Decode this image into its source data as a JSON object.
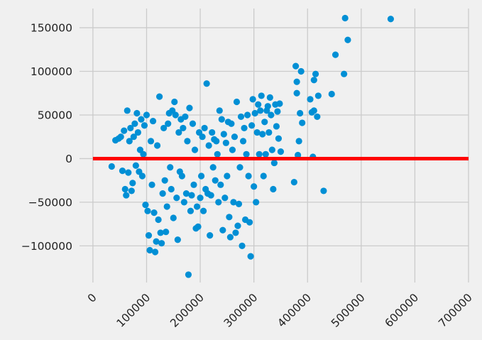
{
  "chart_data": {
    "type": "scatter",
    "title": "",
    "xlabel": "",
    "ylabel": "",
    "xlim": [
      -25000,
      700000
    ],
    "ylim": [
      -142000,
      172000
    ],
    "grid": true,
    "x_ticks": [
      0,
      100000,
      200000,
      300000,
      400000,
      500000,
      600000,
      700000
    ],
    "x_tick_labels": [
      "0",
      "100000",
      "200000",
      "300000",
      "400000",
      "500000",
      "600000",
      "700000"
    ],
    "y_ticks": [
      150000,
      100000,
      50000,
      0,
      -50000,
      -100000
    ],
    "y_tick_labels": [
      "150000",
      "100000",
      "50000",
      "0",
      "−50000",
      "−100000"
    ],
    "series": [
      {
        "values_note_excluded": true,
        "color": "#008fd5",
        "points": [
          [
            35000,
            -9000
          ],
          [
            42000,
            21000
          ],
          [
            48000,
            23000
          ],
          [
            52000,
            25000
          ],
          [
            55000,
            -14000
          ],
          [
            58000,
            32000
          ],
          [
            60000,
            -35000
          ],
          [
            62000,
            -42000
          ],
          [
            64000,
            55000
          ],
          [
            66000,
            -16000
          ],
          [
            68000,
            20000
          ],
          [
            70000,
            35000
          ],
          [
            72000,
            -37000
          ],
          [
            74000,
            -28000
          ],
          [
            76000,
            25000
          ],
          [
            78000,
            40000
          ],
          [
            80000,
            -8000
          ],
          [
            82000,
            52000
          ],
          [
            84000,
            30000
          ],
          [
            86000,
            -15000
          ],
          [
            88000,
            10000
          ],
          [
            90000,
            45000
          ],
          [
            92000,
            -20000
          ],
          [
            94000,
            5000
          ],
          [
            96000,
            38000
          ],
          [
            98000,
            -53000
          ],
          [
            100000,
            50000
          ],
          [
            102000,
            -60000
          ],
          [
            104000,
            -88000
          ],
          [
            106000,
            -105000
          ],
          [
            108000,
            20000
          ],
          [
            110000,
            -30000
          ],
          [
            112000,
            43000
          ],
          [
            114000,
            -62000
          ],
          [
            116000,
            -107000
          ],
          [
            118000,
            -95000
          ],
          [
            120000,
            15000
          ],
          [
            122000,
            -70000
          ],
          [
            124000,
            71000
          ],
          [
            126000,
            -85000
          ],
          [
            128000,
            -97000
          ],
          [
            130000,
            -40000
          ],
          [
            132000,
            35000
          ],
          [
            134000,
            -25000
          ],
          [
            136000,
            -84000
          ],
          [
            138000,
            -55000
          ],
          [
            140000,
            40000
          ],
          [
            142000,
            52000
          ],
          [
            144000,
            -10000
          ],
          [
            146000,
            -35000
          ],
          [
            148000,
            55000
          ],
          [
            150000,
            -68000
          ],
          [
            152000,
            65000
          ],
          [
            154000,
            50000
          ],
          [
            156000,
            -45000
          ],
          [
            158000,
            -93000
          ],
          [
            160000,
            30000
          ],
          [
            162000,
            -15000
          ],
          [
            164000,
            45000
          ],
          [
            166000,
            -20000
          ],
          [
            168000,
            35000
          ],
          [
            170000,
            -50000
          ],
          [
            172000,
            48000
          ],
          [
            174000,
            -40000
          ],
          [
            176000,
            20000
          ],
          [
            178000,
            -133000
          ],
          [
            180000,
            58000
          ],
          [
            182000,
            -60000
          ],
          [
            184000,
            -42000
          ],
          [
            186000,
            40000
          ],
          [
            188000,
            -30000
          ],
          [
            190000,
            10000
          ],
          [
            192000,
            -80000
          ],
          [
            194000,
            -55000
          ],
          [
            196000,
            -78000
          ],
          [
            198000,
            30000
          ],
          [
            200000,
            -45000
          ],
          [
            202000,
            -20000
          ],
          [
            204000,
            25000
          ],
          [
            206000,
            -60000
          ],
          [
            208000,
            35000
          ],
          [
            210000,
            -35000
          ],
          [
            212000,
            86000
          ],
          [
            214000,
            -40000
          ],
          [
            216000,
            15000
          ],
          [
            218000,
            -88000
          ],
          [
            220000,
            -42000
          ],
          [
            222000,
            30000
          ],
          [
            224000,
            -10000
          ],
          [
            226000,
            22000
          ],
          [
            228000,
            -25000
          ],
          [
            230000,
            20000
          ],
          [
            232000,
            5000
          ],
          [
            234000,
            -50000
          ],
          [
            236000,
            55000
          ],
          [
            238000,
            -30000
          ],
          [
            240000,
            45000
          ],
          [
            242000,
            -82000
          ],
          [
            244000,
            28000
          ],
          [
            246000,
            -45000
          ],
          [
            248000,
            18000
          ],
          [
            250000,
            -20000
          ],
          [
            252000,
            42000
          ],
          [
            254000,
            -67000
          ],
          [
            256000,
            -90000
          ],
          [
            258000,
            40000
          ],
          [
            260000,
            10000
          ],
          [
            262000,
            -50000
          ],
          [
            264000,
            25000
          ],
          [
            266000,
            -85000
          ],
          [
            268000,
            65000
          ],
          [
            270000,
            -77000
          ],
          [
            272000,
            -52000
          ],
          [
            274000,
            -10000
          ],
          [
            276000,
            48000
          ],
          [
            278000,
            -100000
          ],
          [
            280000,
            20000
          ],
          [
            282000,
            35000
          ],
          [
            284000,
            -70000
          ],
          [
            286000,
            5000
          ],
          [
            288000,
            50000
          ],
          [
            290000,
            -20000
          ],
          [
            292000,
            -73000
          ],
          [
            294000,
            -112000
          ],
          [
            296000,
            38000
          ],
          [
            298000,
            68000
          ],
          [
            300000,
            -32000
          ],
          [
            302000,
            52000
          ],
          [
            304000,
            -50000
          ],
          [
            306000,
            30000
          ],
          [
            308000,
            62000
          ],
          [
            310000,
            5000
          ],
          [
            312000,
            55000
          ],
          [
            314000,
            72000
          ],
          [
            316000,
            28000
          ],
          [
            318000,
            -20000
          ],
          [
            320000,
            42000
          ],
          [
            322000,
            5000
          ],
          [
            324000,
            55000
          ],
          [
            326000,
            60000
          ],
          [
            328000,
            30000
          ],
          [
            330000,
            70000
          ],
          [
            332000,
            50000
          ],
          [
            334000,
            10000
          ],
          [
            336000,
            -35000
          ],
          [
            338000,
            -5000
          ],
          [
            340000,
            62000
          ],
          [
            342000,
            37000
          ],
          [
            344000,
            54000
          ],
          [
            346000,
            23000
          ],
          [
            348000,
            63000
          ],
          [
            350000,
            8000
          ],
          [
            375000,
            -27000
          ],
          [
            378000,
            106000
          ],
          [
            380000,
            75000
          ],
          [
            380000,
            88000
          ],
          [
            382000,
            4000
          ],
          [
            384000,
            20000
          ],
          [
            386000,
            52000
          ],
          [
            388000,
            100000
          ],
          [
            390000,
            41000
          ],
          [
            405000,
            68000
          ],
          [
            408000,
            53000
          ],
          [
            410000,
            2000
          ],
          [
            412000,
            55000
          ],
          [
            412000,
            90000
          ],
          [
            415000,
            97000
          ],
          [
            418000,
            48000
          ],
          [
            420000,
            72000
          ],
          [
            430000,
            -37000
          ],
          [
            445000,
            74000
          ],
          [
            452000,
            119000
          ],
          [
            468000,
            97000
          ],
          [
            470000,
            161000
          ],
          [
            475000,
            136000
          ],
          [
            555000,
            160000
          ]
        ]
      }
    ],
    "reference_line": {
      "y": 0,
      "x_range": [
        0,
        700000
      ],
      "color": "#ff0000"
    }
  },
  "colors": {
    "background": "#f0f0f0",
    "grid": "#cbcbcb",
    "points": "#008fd5",
    "line": "#ff0000"
  }
}
